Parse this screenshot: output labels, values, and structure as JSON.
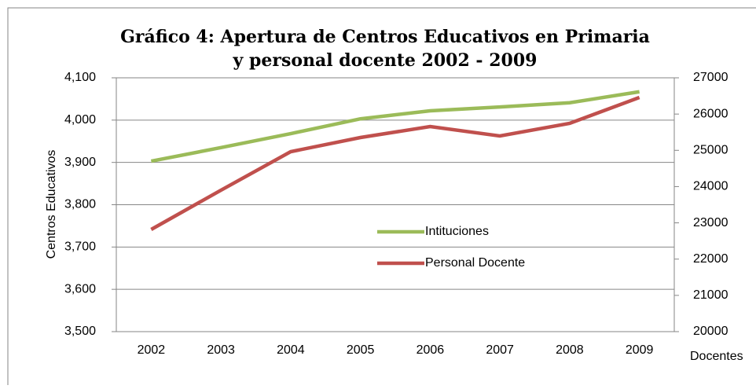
{
  "chart_data": {
    "type": "line",
    "title": [
      "Gráfico 4:  Apertura de Centros Educativos en Primaria",
      "y personal docente 2002 - 2009"
    ],
    "y_label": "Centros Educativos",
    "y2_label": "Docentes",
    "categories": [
      "2002",
      "2003",
      "2004",
      "2005",
      "2006",
      "2007",
      "2008",
      "2009"
    ],
    "series": [
      {
        "name": "Intituciones",
        "color": "#9bbb59",
        "values": [
          3903,
          3935,
          3968,
          4003,
          4022,
          4031,
          4041,
          4067
        ]
      },
      {
        "name": "Personal Docente",
        "color": "#c0504d",
        "axis": "y2",
        "values": [
          22817,
          23900,
          24963,
          25353,
          25656,
          25396,
          25743,
          26458
        ]
      }
    ],
    "ylim": [
      3500,
      4100
    ],
    "yticks": [
      {
        "value": 3500,
        "label": "3,500"
      },
      {
        "value": 3600,
        "label": "3,600"
      },
      {
        "value": 3700,
        "label": "3,700"
      },
      {
        "value": 3800,
        "label": "3,800"
      },
      {
        "value": 3900,
        "label": "3,900"
      },
      {
        "value": 4000,
        "label": "4,000"
      },
      {
        "value": 4100,
        "label": "4,100"
      }
    ],
    "y2lim": [
      20000,
      27000
    ],
    "y2ticks": [
      20000,
      21000,
      22000,
      23000,
      24000,
      25000,
      26000,
      27000
    ],
    "grid": true,
    "legend": "center"
  }
}
